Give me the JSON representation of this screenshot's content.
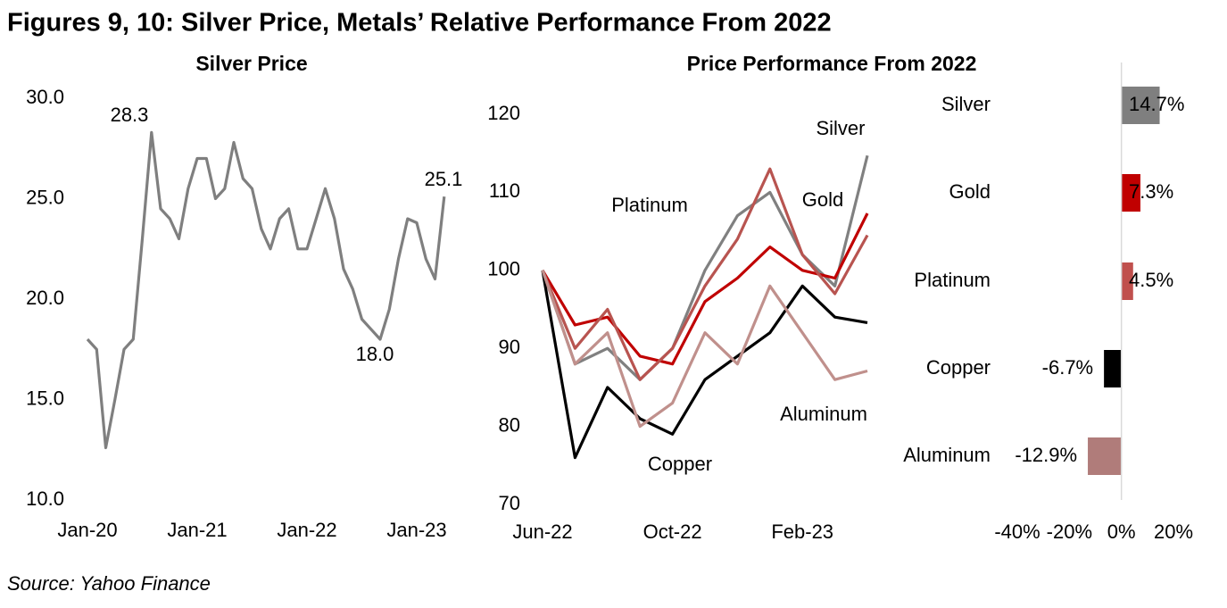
{
  "title": "Figures 9, 10: Silver Price, Metals’ Relative Performance From 2022",
  "source": "Source: Yahoo Finance",
  "chart_data": [
    {
      "type": "line",
      "title": "Silver Price",
      "categories": [
        "Jan-20",
        null,
        null,
        null,
        null,
        null,
        null,
        null,
        null,
        null,
        null,
        null,
        "Jan-21",
        null,
        null,
        null,
        null,
        null,
        null,
        null,
        null,
        null,
        null,
        null,
        "Jan-22",
        null,
        null,
        null,
        null,
        null,
        null,
        null,
        null,
        null,
        null,
        null,
        "Jan-23",
        null,
        null,
        null
      ],
      "series": [
        {
          "name": "Silver",
          "color": "#7f7f7f",
          "values": [
            18.0,
            17.5,
            12.6,
            15.0,
            17.5,
            18.0,
            23.0,
            28.3,
            24.5,
            24.0,
            23.0,
            25.5,
            27.0,
            27.0,
            25.0,
            25.5,
            27.8,
            26.0,
            25.5,
            23.5,
            22.5,
            24.0,
            24.5,
            22.5,
            22.5,
            24.0,
            25.5,
            24.0,
            21.5,
            20.5,
            19.0,
            18.5,
            18.0,
            19.5,
            22.0,
            24.0,
            23.8,
            22.0,
            21.0,
            25.1
          ]
        }
      ],
      "annotations": [
        "28.3",
        "18.0",
        "25.1"
      ],
      "ylim": [
        10,
        30
      ],
      "yticks": [
        {
          "value": 10,
          "label": "10.0"
        },
        {
          "value": 15,
          "label": "15.0"
        },
        {
          "value": 20,
          "label": "20.0"
        },
        {
          "value": 25,
          "label": "25.0"
        },
        {
          "value": 30,
          "label": "30.0"
        }
      ],
      "grid": false
    },
    {
      "type": "line",
      "title": "Price Performance From 2022",
      "categories": [
        "Jun-22",
        null,
        null,
        null,
        "Oct-22",
        null,
        null,
        null,
        "Feb-23",
        null,
        null
      ],
      "series": [
        {
          "name": "Silver",
          "color": "#808080",
          "values": [
            100,
            88,
            90,
            86,
            90,
            100,
            107,
            110,
            102,
            98,
            114.7
          ]
        },
        {
          "name": "Gold",
          "color": "#c00000",
          "values": [
            100,
            93,
            94,
            89,
            88,
            96,
            99,
            103,
            100,
            99,
            107.3
          ]
        },
        {
          "name": "Platinum",
          "color": "#b85450",
          "values": [
            100,
            90,
            95,
            86,
            90,
            98,
            104,
            113,
            102,
            97,
            104.5
          ]
        },
        {
          "name": "Copper",
          "color": "#000000",
          "values": [
            100,
            76,
            85,
            81,
            79,
            86,
            89,
            92,
            98,
            94,
            93.3
          ]
        },
        {
          "name": "Aluminum",
          "color": "#c0908c",
          "values": [
            100,
            88,
            92,
            80,
            83,
            92,
            88,
            98,
            92,
            86,
            87.1
          ]
        }
      ],
      "ylim": [
        70,
        120
      ],
      "yticks": [
        70,
        80,
        90,
        100,
        110,
        120
      ],
      "grid": false
    },
    {
      "type": "bar",
      "orientation": "horizontal",
      "categories": [
        "Silver",
        "Gold",
        "Platinum",
        "Copper",
        "Aluminum"
      ],
      "values": [
        14.7,
        7.3,
        4.5,
        -6.7,
        -12.9
      ],
      "value_labels": [
        "14.7%",
        "7.3%",
        "4.5%",
        "-6.7%",
        "-12.9%"
      ],
      "colors": [
        "#7f7f7f",
        "#c00000",
        "#c0504d",
        "#000000",
        "#b07c7a"
      ],
      "xlim": [
        -40,
        20
      ],
      "xticks": [
        {
          "value": -40,
          "label": "-40%"
        },
        {
          "value": -20,
          "label": "-20%"
        },
        {
          "value": 0,
          "label": "0%"
        },
        {
          "value": 20,
          "label": "20%"
        }
      ],
      "grid": false
    }
  ]
}
